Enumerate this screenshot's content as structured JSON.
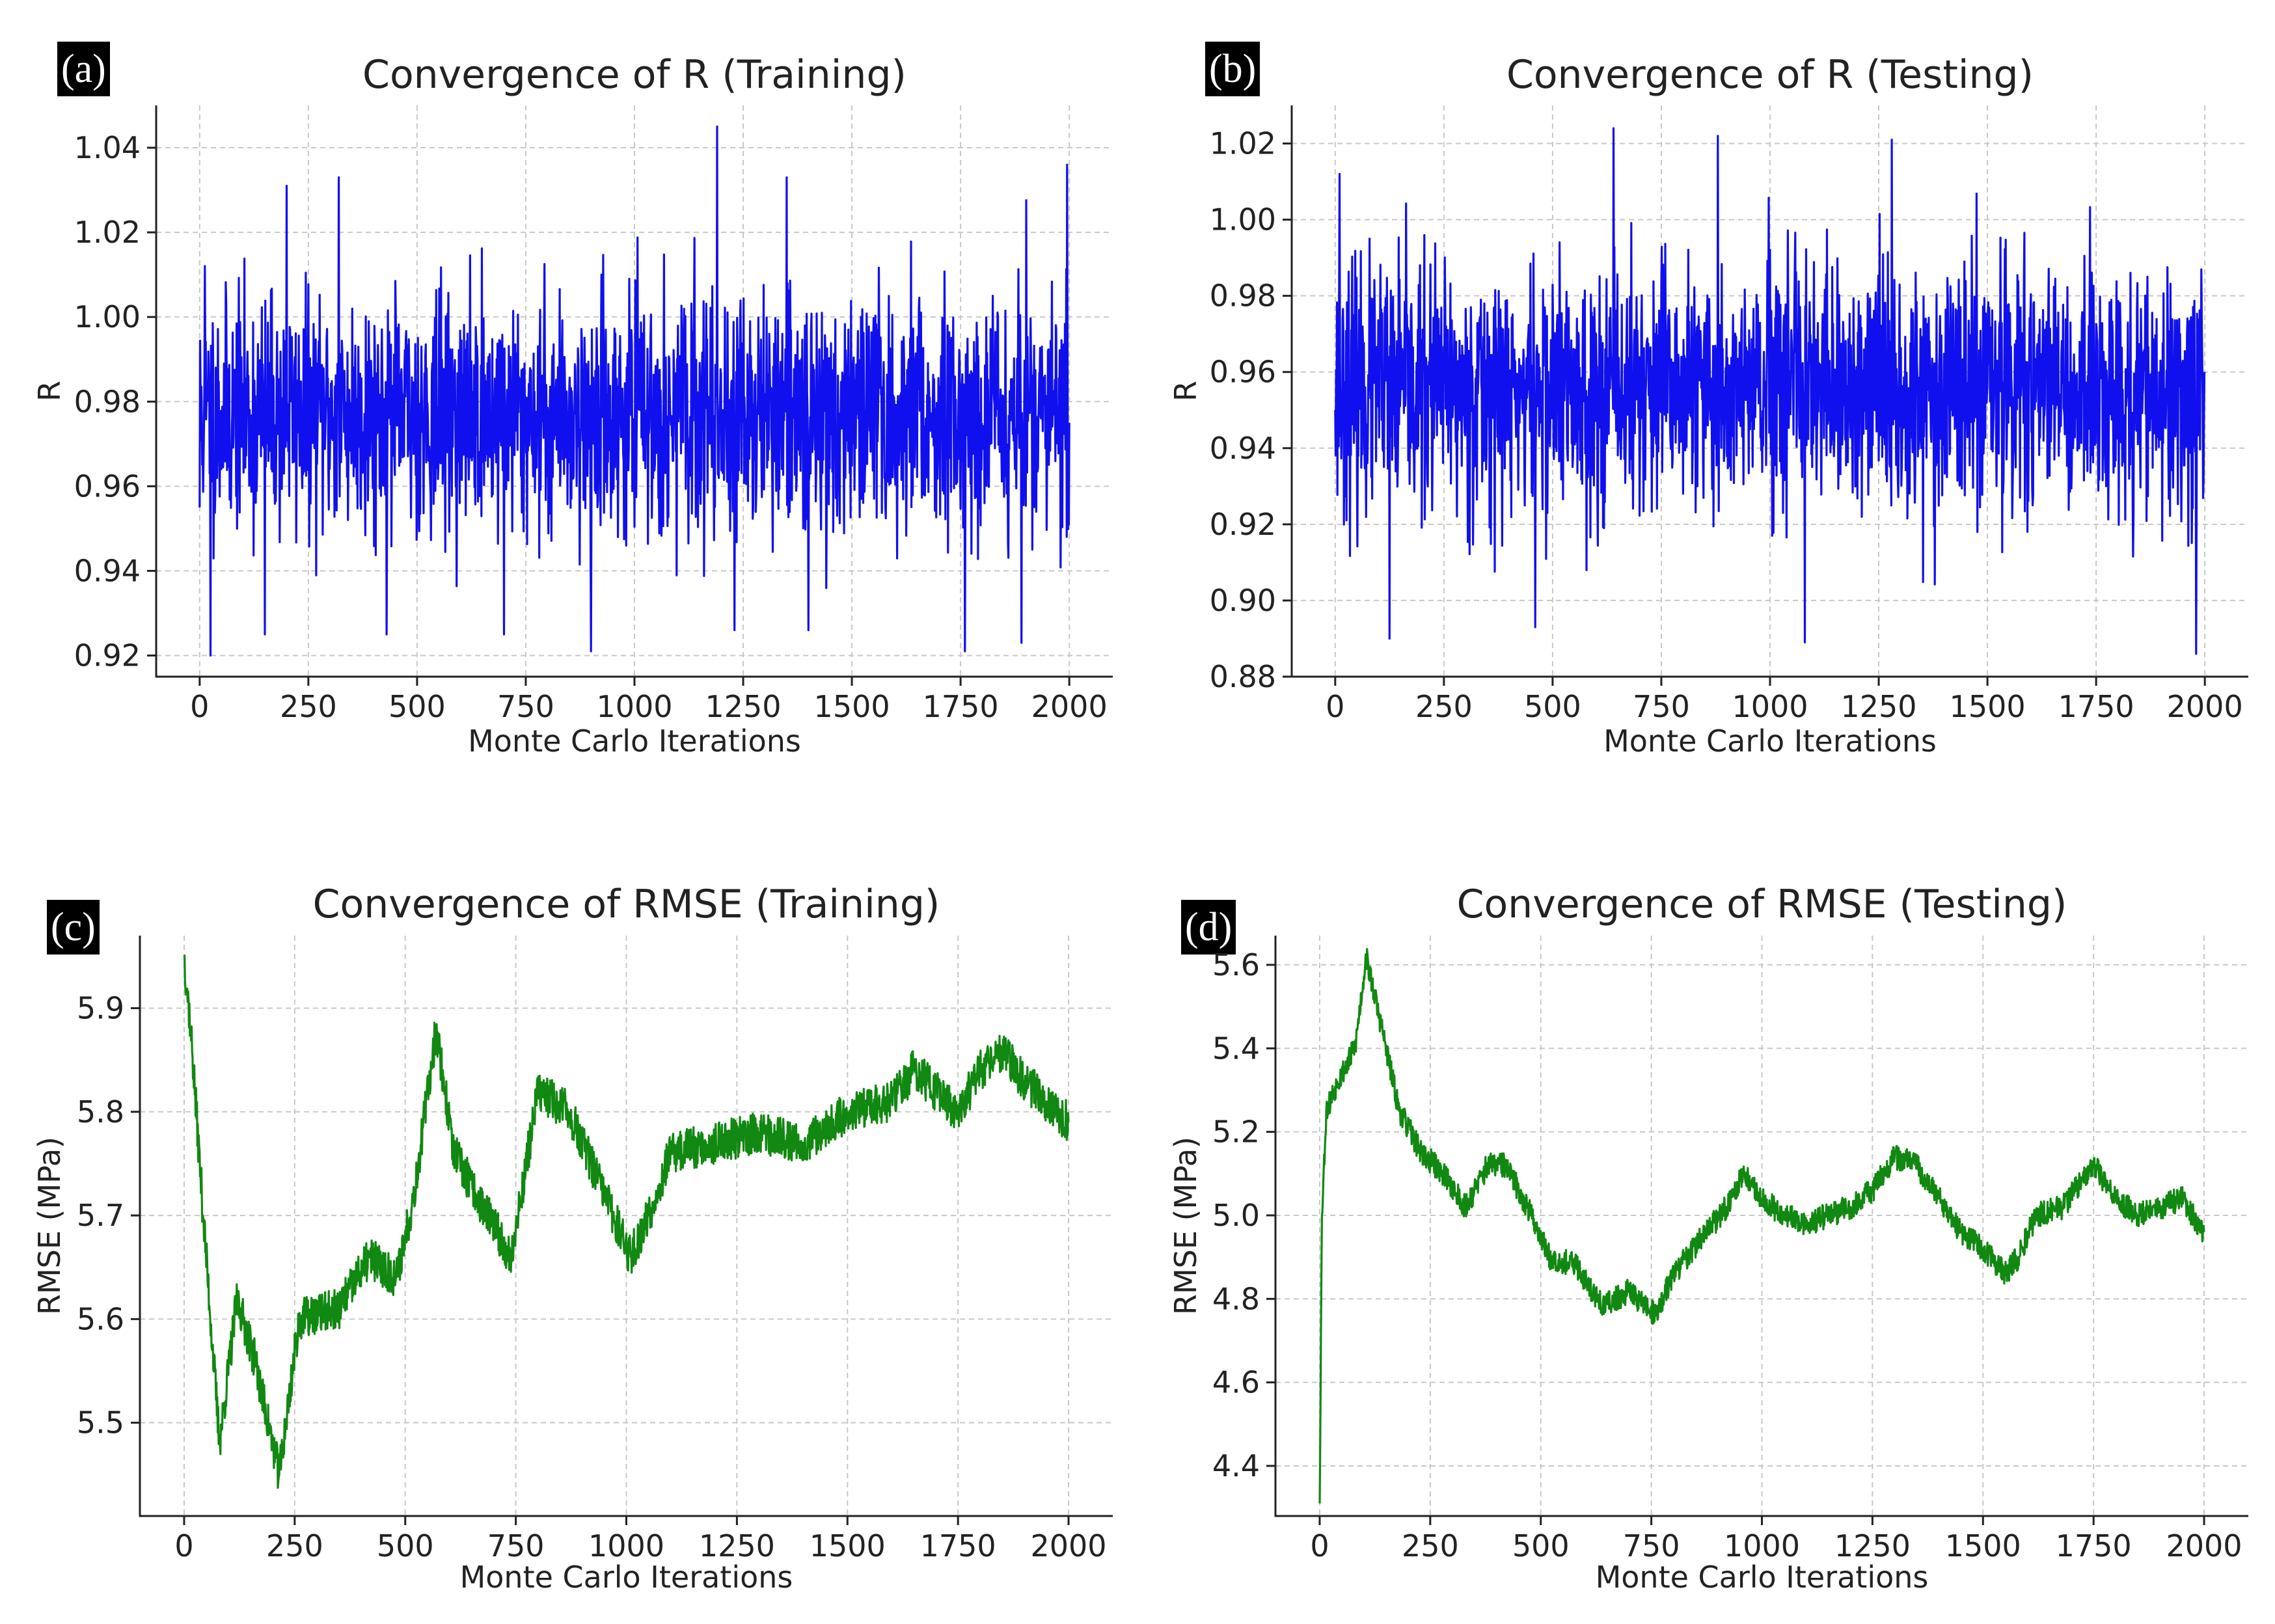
{
  "chart_data": [
    {
      "type": "line",
      "label": "(a)",
      "title": "Convergence of R (Training)",
      "xlabel": "Monte Carlo Iterations",
      "ylabel": "R",
      "xlim": [
        -100,
        2100
      ],
      "ylim": [
        0.915,
        1.05
      ],
      "xticks": [
        0,
        250,
        500,
        750,
        1000,
        1250,
        1500,
        1750,
        2000
      ],
      "xtick_labels": [
        "0",
        "250",
        "500",
        "750",
        "1000",
        "1250",
        "1500",
        "1750",
        "2000"
      ],
      "yticks": [
        0.92,
        0.94,
        0.96,
        0.98,
        1.0,
        1.02,
        1.04
      ],
      "ytick_labels": [
        "0.92",
        "0.94",
        "0.96",
        "0.98",
        "1.00",
        "1.02",
        "1.04"
      ],
      "grid": true,
      "color": "#1010ee",
      "series": [
        {
          "name": "R (Training)",
          "noise": {
            "n": 2000,
            "mean": 0.977,
            "std": 0.0135,
            "min": 0.92,
            "max": 1.045,
            "seed": 11
          },
          "values": [
            [
              0,
              0.955
            ],
            [
              12,
              1.012
            ],
            [
              25,
              0.92
            ],
            [
              150,
              0.925
            ],
            [
              200,
              1.031
            ],
            [
              320,
              1.033
            ],
            [
              430,
              0.925
            ],
            [
              700,
              0.925
            ],
            [
              900,
              0.921
            ],
            [
              1190,
              1.045
            ],
            [
              1230,
              0.926
            ],
            [
              1400,
              0.926
            ],
            [
              1760,
              0.921
            ],
            [
              1890,
              0.923
            ],
            [
              1995,
              1.036
            ],
            [
              2000,
              0.975
            ]
          ]
        }
      ]
    },
    {
      "type": "line",
      "label": "(b)",
      "title": "Convergence of R (Testing)",
      "xlabel": "Monte Carlo Iterations",
      "ylabel": "R",
      "xlim": [
        -100,
        2100
      ],
      "ylim": [
        0.88,
        1.03
      ],
      "xticks": [
        0,
        250,
        500,
        750,
        1000,
        1250,
        1500,
        1750,
        2000
      ],
      "xtick_labels": [
        "0",
        "250",
        "500",
        "750",
        "1000",
        "1250",
        "1500",
        "1750",
        "2000"
      ],
      "yticks": [
        0.88,
        0.9,
        0.92,
        0.94,
        0.96,
        0.98,
        1.0,
        1.02
      ],
      "ytick_labels": [
        "0.88",
        "0.90",
        "0.92",
        "0.94",
        "0.96",
        "0.98",
        "1.00",
        "1.02"
      ],
      "grid": true,
      "color": "#1010ee",
      "series": [
        {
          "name": "R (Testing)",
          "noise": {
            "n": 2000,
            "mean": 0.955,
            "std": 0.016,
            "min": 0.886,
            "max": 1.024,
            "seed": 23
          },
          "values": [
            [
              0,
              0.95
            ],
            [
              10,
              1.012
            ],
            [
              125,
              0.89
            ],
            [
              460,
              0.893
            ],
            [
              640,
              1.024
            ],
            [
              880,
              1.022
            ],
            [
              1080,
              0.889
            ],
            [
              1280,
              1.021
            ],
            [
              1980,
              0.886
            ],
            [
              2000,
              0.96
            ]
          ]
        }
      ]
    },
    {
      "type": "line",
      "label": "(c)",
      "title": "Convergence of RMSE (Training)",
      "xlabel": "Monte Carlo Iterations",
      "ylabel": "RMSE (MPa)",
      "xlim": [
        -100,
        2100
      ],
      "ylim": [
        5.41,
        5.97
      ],
      "xticks": [
        0,
        250,
        500,
        750,
        1000,
        1250,
        1500,
        1750,
        2000
      ],
      "xtick_labels": [
        "0",
        "250",
        "500",
        "750",
        "1000",
        "1250",
        "1500",
        "1750",
        "2000"
      ],
      "yticks": [
        5.5,
        5.6,
        5.7,
        5.8,
        5.9
      ],
      "ytick_labels": [
        "5.5",
        "5.6",
        "5.7",
        "5.8",
        "5.9"
      ],
      "grid": true,
      "color": "#118811",
      "series": [
        {
          "name": "RMSE (Training)",
          "noise": {
            "amp": 0.02,
            "seed": 37
          },
          "values": [
            [
              0,
              5.95
            ],
            [
              15,
              5.88
            ],
            [
              40,
              5.72
            ],
            [
              80,
              5.48
            ],
            [
              120,
              5.62
            ],
            [
              160,
              5.56
            ],
            [
              215,
              5.45
            ],
            [
              260,
              5.6
            ],
            [
              350,
              5.61
            ],
            [
              420,
              5.66
            ],
            [
              480,
              5.64
            ],
            [
              520,
              5.72
            ],
            [
              570,
              5.88
            ],
            [
              610,
              5.76
            ],
            [
              660,
              5.72
            ],
            [
              740,
              5.66
            ],
            [
              800,
              5.82
            ],
            [
              870,
              5.8
            ],
            [
              950,
              5.72
            ],
            [
              1010,
              5.66
            ],
            [
              1050,
              5.7
            ],
            [
              1100,
              5.76
            ],
            [
              1200,
              5.77
            ],
            [
              1300,
              5.78
            ],
            [
              1400,
              5.77
            ],
            [
              1500,
              5.8
            ],
            [
              1600,
              5.81
            ],
            [
              1650,
              5.84
            ],
            [
              1700,
              5.82
            ],
            [
              1750,
              5.8
            ],
            [
              1800,
              5.84
            ],
            [
              1850,
              5.86
            ],
            [
              1900,
              5.83
            ],
            [
              1950,
              5.81
            ],
            [
              2000,
              5.79
            ]
          ]
        }
      ]
    },
    {
      "type": "line",
      "label": "(d)",
      "title": "Convergence of RMSE (Testing)",
      "xlabel": "Monte Carlo Iterations",
      "ylabel": "RMSE (MPa)",
      "xlim": [
        -100,
        2100
      ],
      "ylim": [
        4.28,
        5.67
      ],
      "xticks": [
        0,
        250,
        500,
        750,
        1000,
        1250,
        1500,
        1750,
        2000
      ],
      "xtick_labels": [
        "0",
        "250",
        "500",
        "750",
        "1000",
        "1250",
        "1500",
        "1750",
        "2000"
      ],
      "yticks": [
        4.4,
        4.6,
        4.8,
        5.0,
        5.2,
        5.4,
        5.6
      ],
      "ytick_labels": [
        "4.4",
        "4.6",
        "4.8",
        "5.0",
        "5.2",
        "5.4",
        "5.6"
      ],
      "grid": true,
      "color": "#118811",
      "series": [
        {
          "name": "RMSE (Testing)",
          "noise": {
            "amp": 0.03,
            "seed": 53
          },
          "values": [
            [
              0,
              4.31
            ],
            [
              5,
              5.0
            ],
            [
              15,
              5.25
            ],
            [
              40,
              5.32
            ],
            [
              80,
              5.4
            ],
            [
              105,
              5.62
            ],
            [
              140,
              5.45
            ],
            [
              180,
              5.25
            ],
            [
              230,
              5.15
            ],
            [
              280,
              5.1
            ],
            [
              330,
              5.02
            ],
            [
              380,
              5.12
            ],
            [
              420,
              5.12
            ],
            [
              470,
              5.02
            ],
            [
              520,
              4.9
            ],
            [
              580,
              4.88
            ],
            [
              640,
              4.78
            ],
            [
              700,
              4.82
            ],
            [
              760,
              4.76
            ],
            [
              800,
              4.86
            ],
            [
              860,
              4.94
            ],
            [
              920,
              5.02
            ],
            [
              960,
              5.1
            ],
            [
              1000,
              5.04
            ],
            [
              1050,
              5.0
            ],
            [
              1100,
              4.98
            ],
            [
              1150,
              5.0
            ],
            [
              1200,
              5.02
            ],
            [
              1250,
              5.06
            ],
            [
              1300,
              5.14
            ],
            [
              1350,
              5.12
            ],
            [
              1400,
              5.04
            ],
            [
              1450,
              4.96
            ],
            [
              1500,
              4.92
            ],
            [
              1550,
              4.86
            ],
            [
              1580,
              4.9
            ],
            [
              1620,
              5.0
            ],
            [
              1680,
              5.02
            ],
            [
              1750,
              5.12
            ],
            [
              1800,
              5.04
            ],
            [
              1850,
              5.0
            ],
            [
              1900,
              5.02
            ],
            [
              1950,
              5.04
            ],
            [
              2000,
              4.96
            ]
          ]
        }
      ]
    }
  ]
}
